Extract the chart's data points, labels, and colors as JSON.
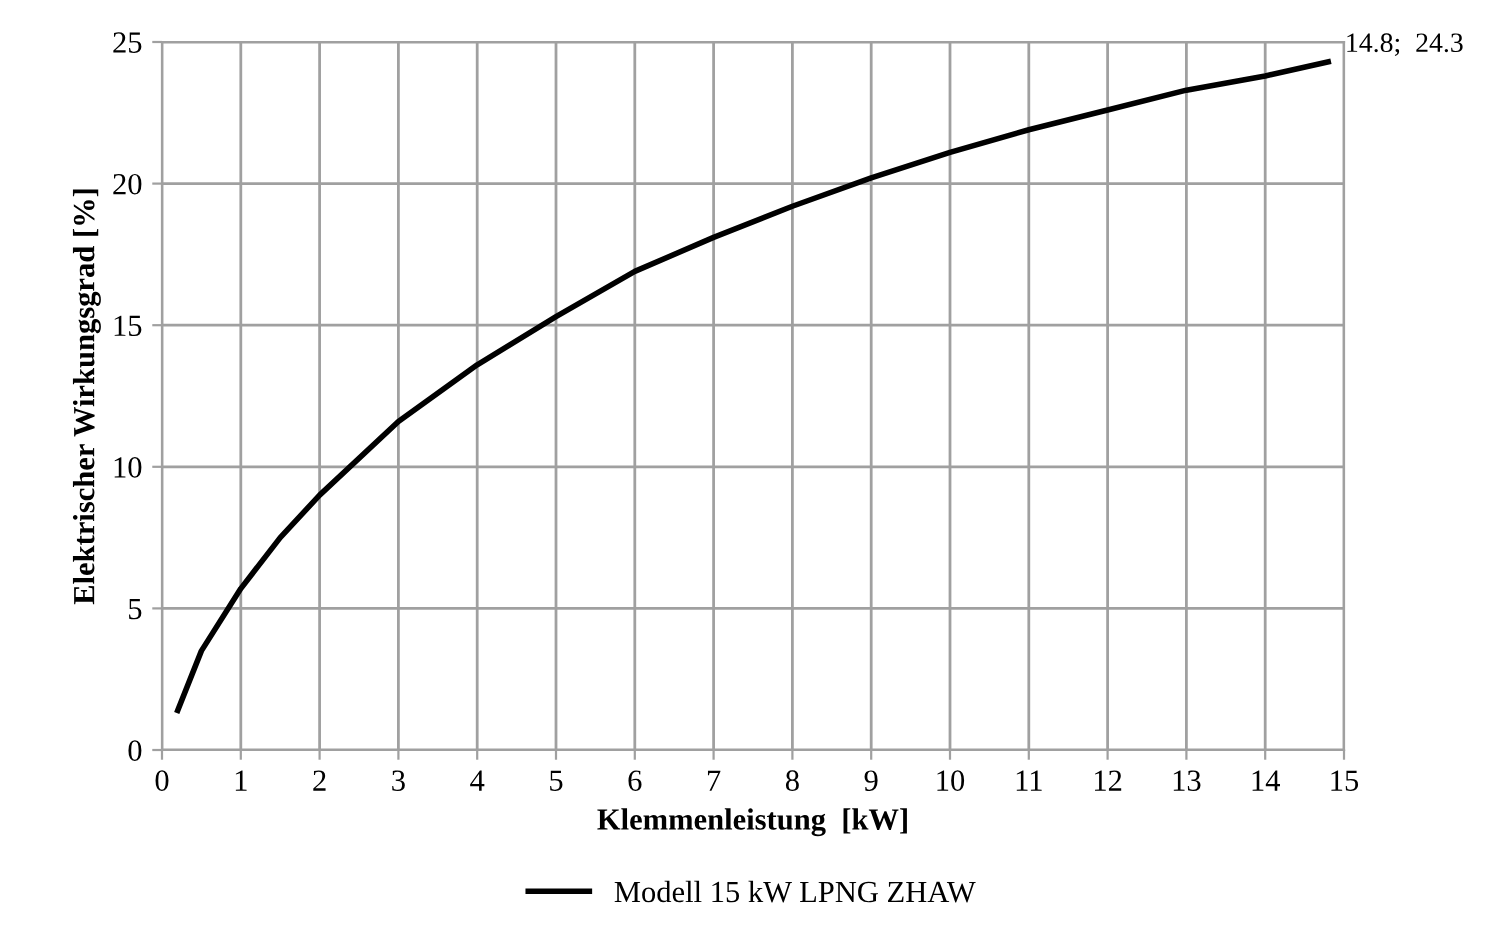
{
  "chart_data": {
    "type": "line",
    "xlabel": "Klemmenleistung  [kW]",
    "ylabel": "Elektrischer Wirkungsgrad [%]",
    "x": [
      0.2,
      0.5,
      1,
      1.5,
      2,
      3,
      4,
      5,
      6,
      7,
      8,
      9,
      10,
      11,
      12,
      13,
      14,
      14.8
    ],
    "series": [
      {
        "name": "Modell 15 kW LPNG ZHAW",
        "color": "#000000",
        "values": [
          1.4,
          3.5,
          5.7,
          7.5,
          9.0,
          11.6,
          13.6,
          15.3,
          16.9,
          18.1,
          19.2,
          20.2,
          21.1,
          21.9,
          22.6,
          23.3,
          23.8,
          24.3
        ]
      }
    ],
    "annotations": [
      {
        "text": "14.8;  24.3",
        "x": 14.8,
        "y": 24.3
      }
    ],
    "xlim": [
      0,
      15
    ],
    "xticks": [
      0,
      1,
      2,
      3,
      4,
      5,
      6,
      7,
      8,
      9,
      10,
      11,
      12,
      13,
      14,
      15
    ],
    "ylim": [
      0,
      25
    ],
    "yticks": [
      0,
      5,
      10,
      15,
      20,
      25
    ],
    "grid": true,
    "legend": "bottom",
    "marker": "none",
    "line_style": "solid"
  }
}
